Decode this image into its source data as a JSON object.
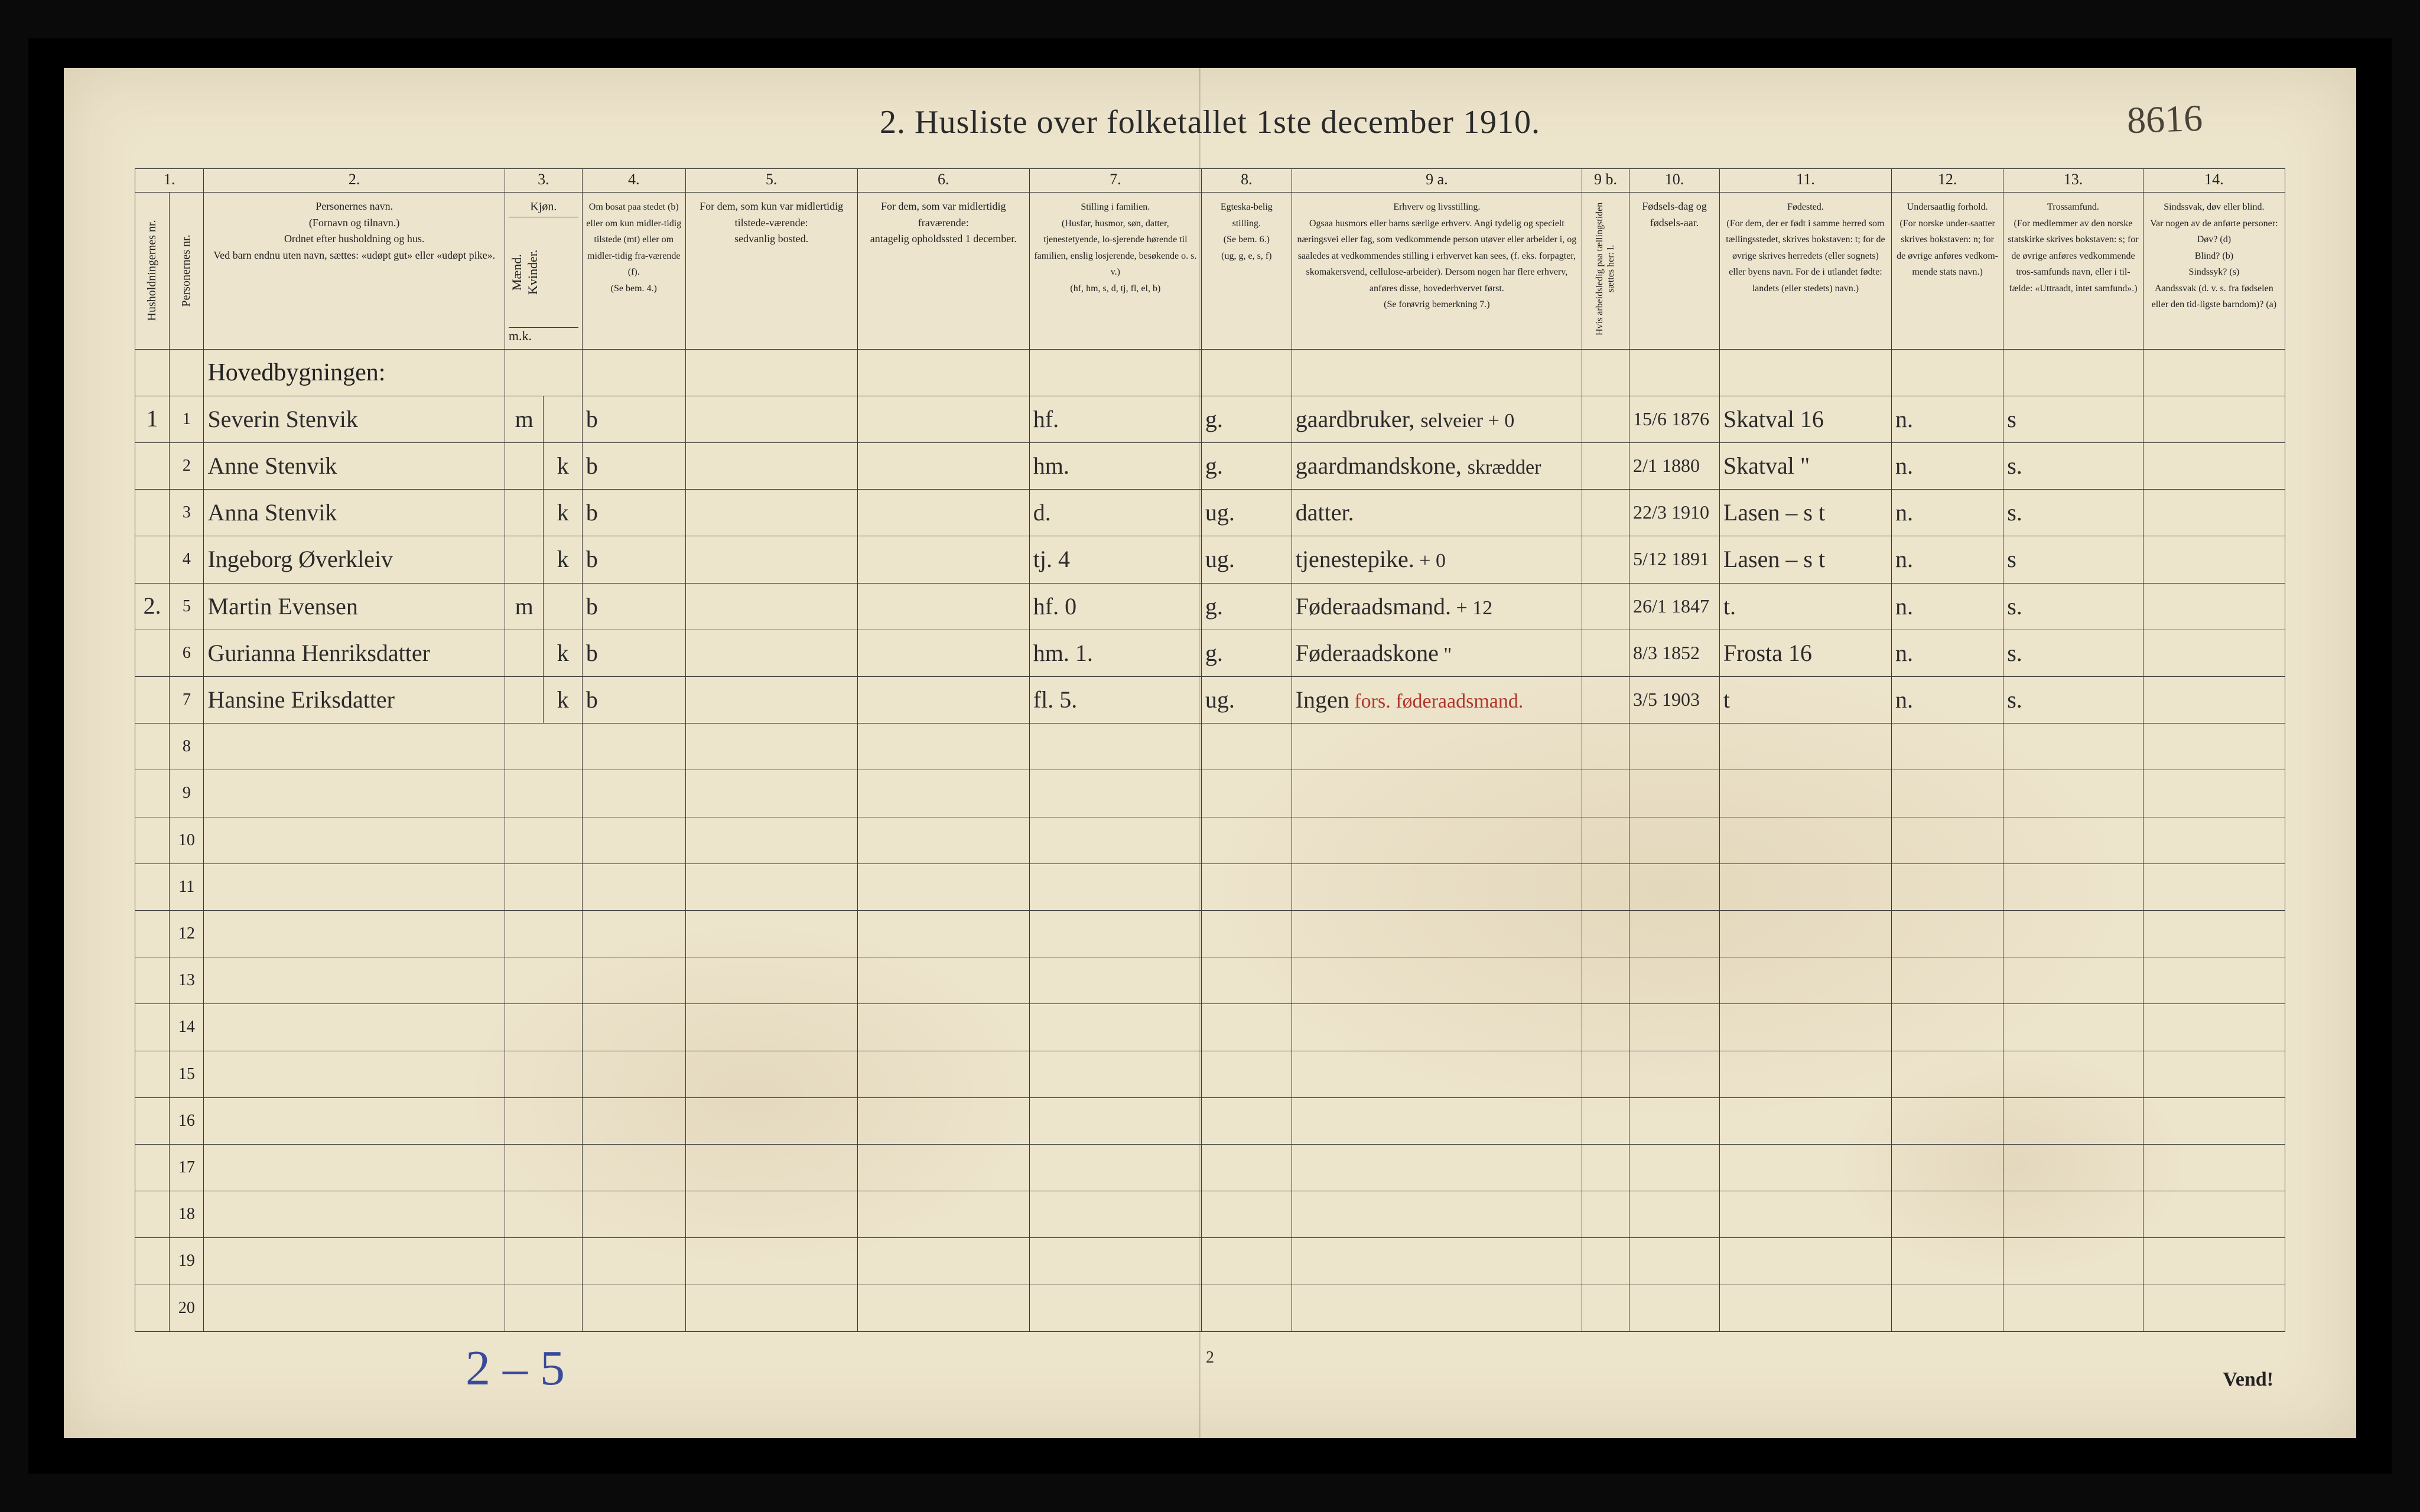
{
  "title": "2.  Husliste over folketallet 1ste december 1910.",
  "handwritten_id": "8616",
  "bottom_note": "2 – 5",
  "page_number": "2",
  "vend": "Vend!",
  "colors": {
    "paper": "#ede4cc",
    "ink": "#2a2a2a",
    "rule": "#3a3a3a",
    "red_ink": "#b0362b",
    "blue_ink": "#3a4a9a",
    "frame": "#000000"
  },
  "columns": {
    "nums": [
      "1.",
      "2.",
      "3.",
      "4.",
      "5.",
      "6.",
      "7.",
      "8.",
      "9 a.",
      "9 b.",
      "10.",
      "11.",
      "12.",
      "13.",
      "14."
    ],
    "c1a": "Husholdningernes nr.",
    "c1b": "Personernes nr.",
    "c2": "Personernes navn.\n(Fornavn og tilnavn.)\nOrdnet efter husholdning og hus.\nVed barn endnu uten navn, sættes: «udøpt gut» eller «udøpt pike».",
    "c3": "Kjøn.",
    "c3_sub": [
      "Mænd.",
      "Kvinder."
    ],
    "c3_foot": [
      "m.",
      "k."
    ],
    "c4": "Om bosat paa stedet (b) eller om kun midler-tidig tilstede (mt) eller om midler-tidig fra-værende (f).\n(Se bem. 4.)",
    "c5": "For dem, som kun var midlertidig tilstede-værende:\nsedvanlig bosted.",
    "c6": "For dem, som var midlertidig fraværende:\nantagelig opholdssted 1 december.",
    "c7": "Stilling i familien.\n(Husfar, husmor, søn, datter, tjenestetyende, lo-sjerende hørende til familien, enslig losjerende, besøkende o. s. v.)\n(hf, hm, s, d, tj, fl, el, b)",
    "c8": "Egteska-belig stilling.\n(Se bem. 6.)\n(ug, g, e, s, f)",
    "c9a": "Erhverv og livsstilling.\nOgsaa husmors eller barns særlige erhverv. Angi tydelig og specielt næringsvei eller fag, som vedkommende person utøver eller arbeider i, og saaledes at vedkommendes stilling i erhvervet kan sees, (f. eks. forpagter, skomakersvend, cellulose-arbeider). Dersom nogen har flere erhverv, anføres disse, hovederhvervet først.\n(Se forøvrig bemerkning 7.)",
    "c9b": "Hvis arbeidsledig paa tællingstiden sættes her: l.",
    "c10": "Fødsels-dag og fødsels-aar.",
    "c11": "Fødested.\n(For dem, der er født i samme herred som tællingsstedet, skrives bokstaven: t; for de øvrige skrives herredets (eller sognets) eller byens navn. For de i utlandet fødte: landets (eller stedets) navn.)",
    "c12": "Undersaatlig forhold.\n(For norske under-saatter skrives bokstaven: n; for de øvrige anføres vedkom-mende stats navn.)",
    "c13": "Trossamfund.\n(For medlemmer av den norske statskirke skrives bokstaven: s; for de øvrige anføres vedkommende tros-samfunds navn, eller i til-fælde: «Uttraadt, intet samfund».)",
    "c14": "Sindssvak, døv eller blind.\nVar nogen av de anførte personer:\nDøv?  (d)\nBlind?  (b)\nSindssyk?  (s)\nAandssvak (d. v. s. fra fødselen eller den tid-ligste barndom)?  (a)"
  },
  "heading_row": "Hovedbygningen:",
  "rows": [
    {
      "hh": "1",
      "pn": "1",
      "name": "Severin Stenvik",
      "sex_m": "m",
      "sex_k": "",
      "res": "b",
      "c5": "",
      "c6": "",
      "fam": "hf.",
      "civ": "g.",
      "occ": "gaardbruker, ",
      "occ_extra": "selveier  + 0",
      "occ_red": "",
      "dob": "15/6 1876",
      "birthplace": "Skatval 16",
      "nat": "n.",
      "rel": "s",
      "c14": ""
    },
    {
      "hh": "",
      "pn": "2",
      "name": "Anne Stenvik",
      "sex_m": "",
      "sex_k": "k",
      "res": "b",
      "c5": "",
      "c6": "",
      "fam": "hm.",
      "civ": "g.",
      "occ": "gaardmandskone, ",
      "occ_extra": "skrædder",
      "occ_red": "",
      "dob": "2/1 1880",
      "birthplace": "Skatval \"",
      "nat": "n.",
      "rel": "s.",
      "c14": ""
    },
    {
      "hh": "",
      "pn": "3",
      "name": "Anna Stenvik",
      "sex_m": "",
      "sex_k": "k",
      "res": "b",
      "c5": "",
      "c6": "",
      "fam": "d.",
      "civ": "ug.",
      "occ": "datter.",
      "occ_extra": "",
      "occ_red": "",
      "dob": "22/3 1910",
      "birthplace": "Lasen – s t",
      "nat": "n.",
      "rel": "s.",
      "c14": ""
    },
    {
      "hh": "",
      "pn": "4",
      "name": "Ingeborg Øverkleiv",
      "sex_m": "",
      "sex_k": "k",
      "res": "b",
      "c5": "",
      "c6": "",
      "fam": "tj.   4",
      "civ": "ug.",
      "occ": "tjenestepike.",
      "occ_extra": "  + 0",
      "occ_red": "",
      "dob": "5/12 1891",
      "birthplace": "Lasen – s t",
      "nat": "n.",
      "rel": "s",
      "c14": ""
    },
    {
      "hh": "2.",
      "pn": "5",
      "name": "Martin Evensen",
      "sex_m": "m",
      "sex_k": "",
      "res": "b",
      "c5": "",
      "c6": "",
      "fam": "hf.   0",
      "civ": "g.",
      "occ": "Føderaadsmand.",
      "occ_extra": "  + 12",
      "occ_red": "",
      "dob": "26/1 1847",
      "birthplace": "t.",
      "nat": "n.",
      "rel": "s.",
      "c14": ""
    },
    {
      "hh": "",
      "pn": "6",
      "name": "Gurianna Henriksdatter",
      "sex_m": "",
      "sex_k": "k",
      "res": "b",
      "c5": "",
      "c6": "",
      "fam": "hm.   1.",
      "civ": "g.",
      "occ": "Føderaadskone",
      "occ_extra": "   \"",
      "occ_red": "",
      "dob": "8/3 1852",
      "birthplace": "Frosta 16",
      "nat": "n.",
      "rel": "s.",
      "c14": ""
    },
    {
      "hh": "",
      "pn": "7",
      "name": "Hansine Eriksdatter",
      "sex_m": "",
      "sex_k": "k",
      "res": "b",
      "c5": "",
      "c6": "",
      "fam": "fl.   5.",
      "civ": "ug.",
      "occ": "Ingen",
      "occ_extra": "",
      "occ_red": " fors. føderaadsmand.",
      "dob": "3/5 1903",
      "birthplace": "t",
      "nat": "n.",
      "rel": "s.",
      "c14": ""
    }
  ],
  "empty_rows": [
    "8",
    "9",
    "10",
    "11",
    "12",
    "13",
    "14",
    "15",
    "16",
    "17",
    "18",
    "19",
    "20"
  ]
}
